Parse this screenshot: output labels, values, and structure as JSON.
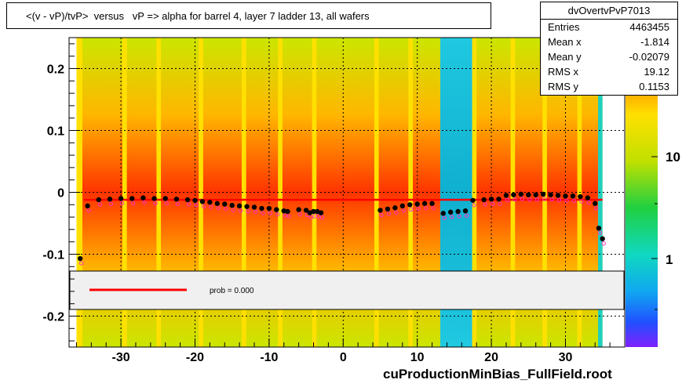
{
  "title": "<(v - vP)/tvP>  versus   vP => alpha for barrel 4, layer 7 ladder 13, all wafers",
  "stats": {
    "name": "dvOvertvPvP7013",
    "rows": [
      {
        "key": "Entries",
        "value": "4463455"
      },
      {
        "key": "Mean x",
        "value": "-1.814"
      },
      {
        "key": "Mean y",
        "value": "-0.02079"
      },
      {
        "key": "RMS x",
        "value": "19.12"
      },
      {
        "key": "RMS y",
        "value": "0.1153"
      }
    ]
  },
  "legend": {
    "fit_label": "prob = 0.000",
    "fit_color": "#ff0000"
  },
  "footer": "cuProductionMinBias_FullField.root",
  "colors": {
    "gap": "#ffe000",
    "normal_band": "#ffa000",
    "low_band": "#10c8d8",
    "profile_black": "#000000",
    "profile_magenta": "#ff30c0",
    "fit": "#ff0000"
  },
  "palette_labels": [
    "10",
    "1"
  ],
  "chart_data": {
    "type": "heatmap",
    "xlim": [
      -37,
      38
    ],
    "ylim": [
      -0.25,
      0.25
    ],
    "x_ticks": [
      -30,
      -20,
      -10,
      0,
      10,
      20,
      30
    ],
    "y_ticks": [
      0.2,
      0.1,
      0,
      -0.1,
      -0.2
    ],
    "x_tick_labels": [
      "-30",
      "-20",
      "-10",
      "0",
      "10",
      "20",
      "30"
    ],
    "y_tick_labels": [
      "0.2",
      "0.1",
      "0",
      "-0.1",
      "-0.2"
    ],
    "grid": true,
    "fit_line": {
      "x": [
        -35,
        35
      ],
      "y": [
        -0.012,
        -0.012
      ]
    },
    "profile": {
      "x": [
        -35.5,
        -34.5,
        -33,
        -31.5,
        -30,
        -28.5,
        -27,
        -25.5,
        -24,
        -22.5,
        -21,
        -20,
        -19,
        -18,
        -17,
        -16,
        -15,
        -14,
        -13,
        -12,
        -11,
        -10,
        -9,
        -8,
        -7.5,
        -6,
        -5,
        -4.5,
        -4,
        -3.5,
        -3,
        5,
        6,
        7,
        8,
        9,
        10,
        11,
        12,
        13.5,
        14.5,
        15.5,
        16.5,
        17.5,
        19,
        20,
        21,
        22,
        23,
        24,
        25,
        26,
        27,
        28,
        29,
        30,
        31,
        32,
        33,
        34,
        34.5,
        35
      ],
      "y": [
        -0.107,
        -0.022,
        -0.012,
        -0.011,
        -0.01,
        -0.01,
        -0.009,
        -0.01,
        -0.01,
        -0.011,
        -0.012,
        -0.013,
        -0.015,
        -0.016,
        -0.018,
        -0.019,
        -0.021,
        -0.022,
        -0.023,
        -0.024,
        -0.026,
        -0.026,
        -0.028,
        -0.03,
        -0.031,
        -0.028,
        -0.029,
        -0.033,
        -0.031,
        -0.031,
        -0.033,
        -0.029,
        -0.027,
        -0.025,
        -0.022,
        -0.02,
        -0.019,
        -0.018,
        -0.018,
        -0.034,
        -0.032,
        -0.031,
        -0.03,
        -0.013,
        -0.012,
        -0.011,
        -0.011,
        -0.005,
        -0.004,
        -0.003,
        -0.004,
        -0.004,
        -0.003,
        -0.004,
        -0.005,
        -0.006,
        -0.006,
        -0.007,
        -0.009,
        -0.018,
        -0.058,
        -0.075
      ]
    }
  }
}
